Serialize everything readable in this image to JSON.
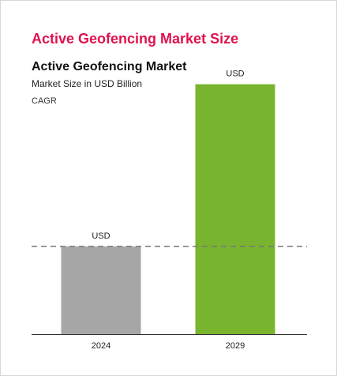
{
  "card": {
    "title": "Active Geofencing Market Size"
  },
  "chart_data": {
    "type": "bar",
    "title": "Active Geofencing Market",
    "subtitle": "Market Size in USD Billion",
    "cagr_label": "CAGR",
    "categories": [
      "2024",
      "2029"
    ],
    "values": [
      1,
      2.85
    ],
    "data_labels": [
      "USD",
      "USD"
    ],
    "bar_colors": [
      "#a6a6a6",
      "#78b42e"
    ],
    "reference_line": {
      "value": 1,
      "style": "dashed",
      "color": "#777777"
    },
    "ylim": [
      0,
      3
    ],
    "grid": false,
    "legend": "none",
    "xlabel": "",
    "ylabel": ""
  }
}
